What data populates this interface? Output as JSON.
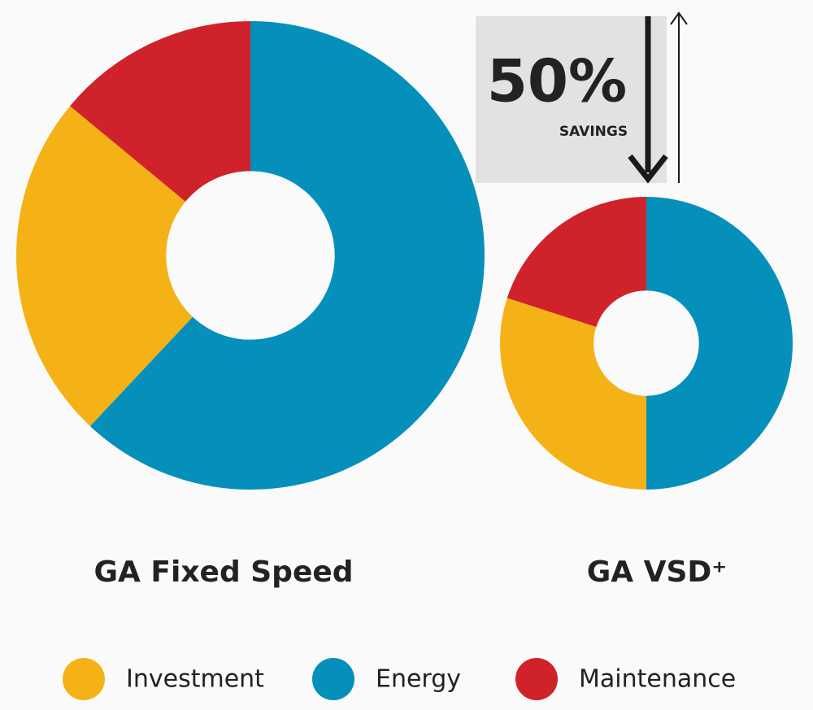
{
  "chart_data": {
    "type": "pie",
    "donut": true,
    "categories": [
      "GA Fixed Speed",
      "GA VSD⁺"
    ],
    "series": [
      {
        "name": "Investment",
        "color": "#f5b217",
        "values": [
          24,
          30
        ]
      },
      {
        "name": "Energy",
        "color": "#0590bb",
        "values": [
          62,
          50
        ]
      },
      {
        "name": "Maintenance",
        "color": "#d0222a",
        "values": [
          14,
          20
        ]
      }
    ],
    "annotation": {
      "text": "50%",
      "subtext": "SAVINGS"
    }
  }
}
